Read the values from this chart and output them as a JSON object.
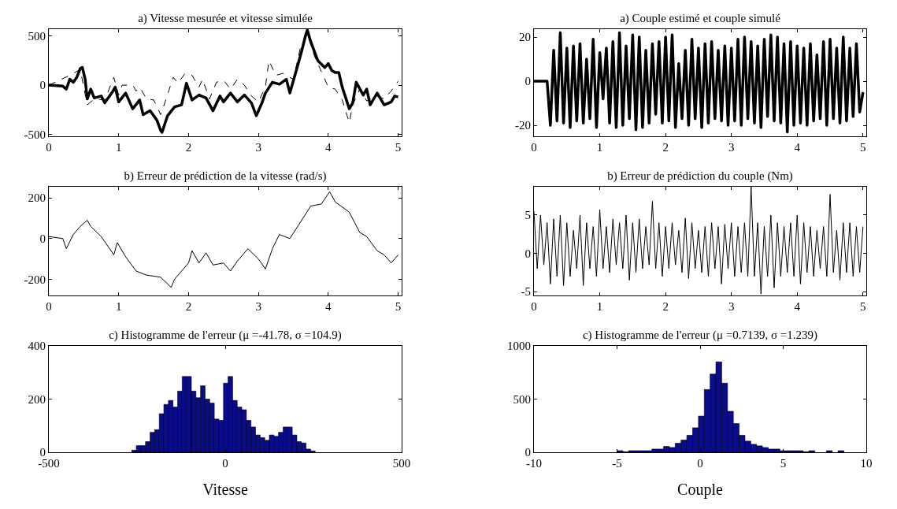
{
  "chart_data": [
    {
      "type": "line",
      "title": "a) Vitesse mesurée et vitesse simulée",
      "xlim": [
        0,
        5.05
      ],
      "xticks": [
        0,
        1,
        2,
        3,
        4,
        5
      ],
      "ylim": [
        -520,
        570
      ],
      "yticks": [
        -500,
        0,
        500
      ],
      "series": [
        {
          "color": "#000000",
          "line_style": "solid",
          "x": [
            0,
            0.2,
            0.25,
            0.3,
            0.35,
            0.4,
            0.45,
            0.48,
            0.52,
            0.55,
            0.6,
            0.65,
            0.75,
            0.8,
            0.9,
            0.95,
            1.0,
            1.1,
            1.2,
            1.3,
            1.35,
            1.45,
            1.55,
            1.6,
            1.62,
            1.7,
            1.8,
            1.9,
            1.97,
            2.05,
            2.15,
            2.25,
            2.35,
            2.45,
            2.5,
            2.6,
            2.7,
            2.8,
            2.9,
            2.97,
            3.05,
            3.1,
            3.2,
            3.3,
            3.4,
            3.45,
            3.55,
            3.62,
            3.68,
            3.7,
            3.75,
            3.85,
            3.95,
            4.0,
            4.05,
            4.1,
            4.15,
            4.2,
            4.3,
            4.35,
            4.4,
            4.5,
            4.55,
            4.6,
            4.7,
            4.8,
            4.9,
            4.95,
            5.0
          ],
          "values": [
            0,
            -10,
            -40,
            60,
            30,
            80,
            170,
            180,
            60,
            -140,
            -40,
            -130,
            -110,
            -180,
            -80,
            -20,
            -170,
            -80,
            -240,
            -150,
            -300,
            -260,
            -360,
            -460,
            -480,
            -310,
            -220,
            -200,
            20,
            -150,
            -100,
            -130,
            -260,
            -110,
            -170,
            -80,
            -170,
            -100,
            -180,
            -310,
            -180,
            -80,
            30,
            10,
            60,
            -80,
            170,
            350,
            520,
            560,
            440,
            250,
            180,
            220,
            150,
            130,
            130,
            -20,
            -240,
            -180,
            30,
            -100,
            -40,
            -200,
            -80,
            -200,
            -170,
            -110,
            -120
          ]
        },
        {
          "color": "#000000",
          "line_style": "dashed",
          "x": [
            0,
            0.3,
            0.45,
            0.55,
            0.65,
            0.8,
            0.93,
            1.0,
            1.05,
            1.2,
            1.25,
            1.3,
            1.4,
            1.5,
            1.55,
            1.6,
            1.65,
            1.72,
            1.78,
            1.85,
            1.95,
            2.05,
            2.15,
            2.2,
            2.3,
            2.4,
            2.5,
            2.6,
            2.7,
            2.8,
            2.9,
            3.0,
            3.1,
            3.15,
            3.25,
            3.35,
            3.5,
            3.6,
            3.7,
            3.8,
            3.9,
            4.0,
            4.1,
            4.2,
            4.3,
            4.35,
            4.45,
            4.55,
            4.7,
            4.8,
            4.9,
            5.0
          ],
          "values": [
            0,
            100,
            160,
            -200,
            -140,
            -150,
            80,
            -100,
            0,
            0,
            -60,
            -20,
            -140,
            -150,
            -220,
            -300,
            -200,
            -50,
            80,
            20,
            120,
            100,
            -20,
            60,
            -140,
            30,
            50,
            -40,
            60,
            0,
            -110,
            -170,
            -20,
            250,
            100,
            120,
            60,
            380,
            520,
            300,
            140,
            -20,
            -40,
            -150,
            -380,
            -200,
            -40,
            -160,
            -110,
            -140,
            -60,
            40
          ]
        }
      ]
    },
    {
      "type": "line",
      "title": "a) Couple estimé et couple simulé",
      "xlim": [
        0,
        5.05
      ],
      "xticks": [
        0,
        1,
        2,
        3,
        4,
        5
      ],
      "ylim": [
        -25,
        23.6
      ],
      "yticks": [
        -20,
        0,
        20
      ],
      "series": [
        {
          "color": "#000000",
          "line_style": "solid",
          "x": [
            0,
            0.2,
            0.25,
            0.3,
            0.35,
            0.4,
            0.45,
            0.5,
            0.55,
            0.6,
            0.65,
            0.7,
            0.75,
            0.8,
            0.85,
            0.9,
            0.95,
            1.0,
            1.05,
            1.1,
            1.15,
            1.2,
            1.25,
            1.3,
            1.35,
            1.4,
            1.45,
            1.5,
            1.55,
            1.6,
            1.65,
            1.7,
            1.75,
            1.8,
            1.85,
            1.9,
            1.95,
            2.0,
            2.05,
            2.1,
            2.15,
            2.2,
            2.25,
            2.3,
            2.35,
            2.4,
            2.45,
            2.5,
            2.55,
            2.6,
            2.65,
            2.7,
            2.75,
            2.8,
            2.85,
            2.9,
            2.95,
            3.0,
            3.05,
            3.1,
            3.15,
            3.2,
            3.25,
            3.3,
            3.35,
            3.4,
            3.45,
            3.5,
            3.55,
            3.6,
            3.65,
            3.7,
            3.75,
            3.8,
            3.85,
            3.9,
            3.95,
            4.0,
            4.05,
            4.1,
            4.15,
            4.2,
            4.25,
            4.3,
            4.35,
            4.4,
            4.45,
            4.5,
            4.55,
            4.6,
            4.65,
            4.7,
            4.75,
            4.8,
            4.85,
            4.9,
            4.95,
            5.0
          ],
          "values": [
            0,
            0,
            -20,
            14,
            -18,
            22,
            -19,
            15,
            -21,
            16,
            -18,
            17,
            -19,
            10,
            -17,
            19,
            -21,
            13,
            -8,
            15,
            -19,
            18,
            -21,
            22,
            -20,
            16,
            -17,
            21,
            -22,
            20,
            -21,
            14,
            -19,
            17,
            -15,
            18,
            -19,
            20,
            -18,
            21,
            -21,
            8,
            -17,
            14,
            -20,
            19,
            -17,
            15,
            -21,
            17,
            -19,
            18,
            -17,
            14,
            -18,
            16,
            -20,
            15,
            -18,
            19,
            -20,
            20,
            -17,
            18,
            -19,
            16,
            -21,
            19,
            -16,
            21,
            -18,
            20,
            -19,
            17,
            -23,
            18,
            -20,
            16,
            -19,
            15,
            -20,
            17,
            -18,
            12,
            -17,
            18,
            -20,
            19,
            -17,
            15,
            -19,
            20,
            -18,
            15,
            -16,
            17,
            -14,
            -5
          ]
        }
      ]
    },
    {
      "type": "line",
      "title": "b) Erreur de prédiction de la vitesse (rad/s)",
      "xlim": [
        0,
        5.05
      ],
      "xticks": [
        0,
        1,
        2,
        3,
        4,
        5
      ],
      "ylim": [
        -280,
        255
      ],
      "yticks": [
        -200,
        0,
        200
      ],
      "series": [
        {
          "color": "#000000",
          "line_style": "solid",
          "x": [
            0,
            0.2,
            0.25,
            0.35,
            0.45,
            0.55,
            0.6,
            0.75,
            0.85,
            0.93,
            0.98,
            1.1,
            1.25,
            1.4,
            1.6,
            1.75,
            1.8,
            2.0,
            2.05,
            2.15,
            2.25,
            2.35,
            2.5,
            2.6,
            2.7,
            2.85,
            3.0,
            3.1,
            3.2,
            3.3,
            3.45,
            3.6,
            3.75,
            3.9,
            4.02,
            4.1,
            4.3,
            4.45,
            4.55,
            4.7,
            4.8,
            4.9,
            5.0
          ],
          "values": [
            10,
            0,
            -50,
            20,
            60,
            90,
            60,
            10,
            -40,
            -80,
            -20,
            -90,
            -160,
            -180,
            -190,
            -240,
            -200,
            -120,
            -60,
            -120,
            -70,
            -130,
            -120,
            -160,
            -110,
            -50,
            -100,
            -150,
            -50,
            20,
            0,
            80,
            160,
            170,
            230,
            180,
            130,
            30,
            10,
            -60,
            -80,
            -120,
            -80
          ]
        }
      ]
    },
    {
      "type": "line",
      "title": "b) Erreur de prédiction du couple (Nm)",
      "xlim": [
        0,
        5.05
      ],
      "xticks": [
        0,
        1,
        2,
        3,
        4,
        5
      ],
      "ylim": [
        -5.5,
        8.7
      ],
      "yticks": [
        -5,
        0,
        5
      ],
      "series": [
        {
          "color": "#000000",
          "line_style": "solid",
          "x": [
            0,
            0.05,
            0.1,
            0.15,
            0.2,
            0.25,
            0.3,
            0.35,
            0.4,
            0.45,
            0.5,
            0.55,
            0.6,
            0.65,
            0.7,
            0.75,
            0.8,
            0.85,
            0.9,
            0.95,
            1.0,
            1.05,
            1.1,
            1.15,
            1.2,
            1.25,
            1.3,
            1.35,
            1.4,
            1.45,
            1.5,
            1.55,
            1.6,
            1.65,
            1.7,
            1.75,
            1.8,
            1.85,
            1.9,
            1.95,
            2.0,
            2.05,
            2.1,
            2.15,
            2.2,
            2.25,
            2.3,
            2.35,
            2.4,
            2.45,
            2.5,
            2.55,
            2.6,
            2.65,
            2.7,
            2.75,
            2.8,
            2.85,
            2.9,
            2.95,
            3.0,
            3.05,
            3.1,
            3.15,
            3.2,
            3.25,
            3.3,
            3.35,
            3.4,
            3.45,
            3.5,
            3.55,
            3.6,
            3.65,
            3.7,
            3.75,
            3.8,
            3.85,
            3.9,
            3.95,
            4.0,
            4.05,
            4.1,
            4.15,
            4.2,
            4.25,
            4.3,
            4.35,
            4.4,
            4.45,
            4.5,
            4.55,
            4.6,
            4.65,
            4.7,
            4.75,
            4.8,
            4.85,
            4.9,
            4.95,
            5.0
          ],
          "values": [
            5.5,
            -2,
            5,
            -1.5,
            4,
            -4,
            4.5,
            -3,
            5,
            -4.2,
            4,
            -3,
            3,
            -2,
            5,
            -4.2,
            4,
            -2,
            3.5,
            -3,
            5.7,
            -2,
            3.5,
            -2.5,
            4.5,
            -1.5,
            4,
            -2,
            5,
            -3.5,
            4,
            -2.5,
            4.5,
            -2,
            3.5,
            -1.5,
            6.8,
            -2,
            4,
            -3,
            3.5,
            -2,
            4,
            -1.5,
            3,
            -2.5,
            4.6,
            -3.3,
            4,
            -2,
            3,
            -2.5,
            3.5,
            -3,
            4,
            -2,
            3.5,
            -4,
            3.8,
            -2,
            4,
            -3,
            3.5,
            -2.5,
            4,
            -3,
            8.7,
            -3,
            4,
            -5.3,
            3.5,
            -3,
            5,
            -4.5,
            4,
            -3,
            3.5,
            -2.5,
            4,
            -3,
            5,
            -4,
            4,
            -2.5,
            3.5,
            -3,
            3,
            -2,
            3.5,
            -3,
            7.7,
            -2.5,
            3,
            -3.5,
            4,
            -2.5,
            4,
            -3,
            3.5,
            -2.5,
            3.5
          ]
        }
      ]
    },
    {
      "type": "histogram",
      "title": "c) Histogramme de l'erreur (μ =-41.78, σ =104.9)",
      "xlabel": "Vitesse",
      "color": "#0a0a8c",
      "xlim": [
        -500,
        500
      ],
      "xticks": [
        -500,
        0,
        500
      ],
      "ylim": [
        0,
        400
      ],
      "yticks": [
        0,
        200,
        400
      ],
      "bins": [
        -265,
        -252,
        -239,
        -226,
        -213,
        -200,
        -187,
        -174,
        -161,
        -148,
        -135,
        -122,
        -109,
        -96,
        -83,
        -70,
        -57,
        -44,
        -31,
        -18,
        -5,
        8,
        21,
        34,
        47,
        60,
        73,
        86,
        99,
        112,
        125,
        138,
        151,
        164,
        177,
        190,
        203,
        216,
        229,
        242,
        255
      ],
      "values": [
        8,
        25,
        25,
        40,
        75,
        85,
        145,
        180,
        195,
        170,
        230,
        285,
        285,
        230,
        205,
        250,
        200,
        185,
        125,
        120,
        260,
        285,
        195,
        170,
        160,
        120,
        95,
        65,
        55,
        45,
        65,
        60,
        75,
        95,
        95,
        65,
        40,
        35,
        12,
        5
      ]
    },
    {
      "type": "histogram",
      "title": "c) Histogramme de l'erreur (μ =0.7139, σ =1.239)",
      "xlabel": "Couple",
      "color": "#0a0a8c",
      "xlim": [
        -10,
        10
      ],
      "xticks": [
        -10,
        -5,
        0,
        5,
        10
      ],
      "ylim": [
        0,
        1000
      ],
      "yticks": [
        0,
        500,
        1000
      ],
      "bins": [
        -5,
        -4.65,
        -4.3,
        -3.95,
        -3.6,
        -3.25,
        -2.9,
        -2.55,
        -2.2,
        -1.85,
        -1.5,
        -1.15,
        -0.8,
        -0.45,
        -0.1,
        0.25,
        0.6,
        0.95,
        1.3,
        1.65,
        2,
        2.35,
        2.7,
        3.05,
        3.4,
        3.75,
        4.1,
        4.45,
        4.8,
        5.15,
        5.5,
        5.85,
        6.2,
        6.55,
        6.9,
        7.25,
        7.6,
        7.95,
        8.3,
        8.65,
        9
      ],
      "values": [
        15,
        5,
        15,
        15,
        15,
        15,
        30,
        30,
        55,
        45,
        85,
        115,
        160,
        230,
        340,
        590,
        735,
        850,
        650,
        385,
        270,
        160,
        105,
        75,
        60,
        45,
        30,
        30,
        15,
        15,
        15,
        15,
        5,
        15,
        0,
        0,
        15,
        0,
        15,
        0
      ]
    }
  ]
}
